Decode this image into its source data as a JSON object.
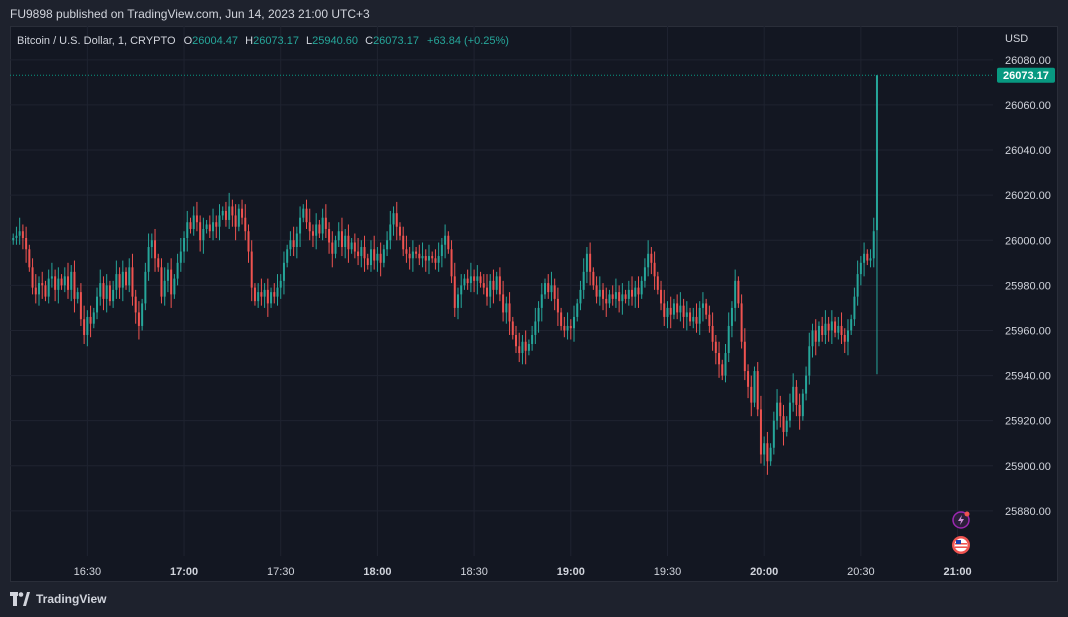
{
  "header": {
    "published": "FU9898 published on TradingView.com, Jun 14, 2023 21:00 UTC+3"
  },
  "footer": {
    "brand": "TradingView",
    "logo_icon": "tradingview-logo-icon"
  },
  "colors": {
    "up": "#26a69a",
    "down": "#ef5350",
    "background": "#131722",
    "grid": "#1f2330",
    "text": "#d1d4dc",
    "price_label": "#089981"
  },
  "chart_data": {
    "type": "candlestick",
    "symbol_text": "Bitcoin / U.S. Dollar, 1, CRYPTO",
    "ohlc": {
      "o_label": "O",
      "o_value": "26004.47",
      "h_label": "H",
      "h_value": "26073.17",
      "l_label": "L",
      "l_value": "25940.60",
      "c_label": "C",
      "c_value": "26073.17",
      "change": "+63.84 (+0.25%)"
    },
    "currency": "USD",
    "last_price": "26073.17",
    "last_price_value": 26073.17,
    "ylim": [
      25860,
      26095
    ],
    "y_ticks": [
      "26080.00",
      "26060.00",
      "26040.00",
      "26020.00",
      "26000.00",
      "25980.00",
      "25960.00",
      "25940.00",
      "25920.00",
      "25900.00",
      "25880.00"
    ],
    "y_tick_values": [
      26080,
      26060,
      26040,
      26020,
      26000,
      25980,
      25960,
      25940,
      25920,
      25900,
      25880
    ],
    "x_ticks": [
      "16:30",
      "17:00",
      "17:30",
      "18:00",
      "18:30",
      "19:00",
      "19:30",
      "20:00",
      "20:30",
      "21:00"
    ],
    "x_tick_bold": [
      false,
      true,
      false,
      true,
      false,
      true,
      false,
      true,
      false,
      true
    ],
    "x_tick_minutes_from_1630": [
      0,
      30,
      60,
      90,
      120,
      150,
      180,
      210,
      240,
      270
    ],
    "x_range_minutes_from_1630": [
      -24,
      281
    ],
    "grid": true,
    "event_icons": [
      "lightning-event-icon",
      "us-flag-event-icon"
    ],
    "close_series": [
      {
        "t": -23,
        "c": 26001
      },
      {
        "t": -22,
        "c": 26002
      },
      {
        "t": -21,
        "c": 26004
      },
      {
        "t": -20,
        "c": 26001
      },
      {
        "t": -19,
        "c": 25996
      },
      {
        "t": -18,
        "c": 25988
      },
      {
        "t": -17,
        "c": 25979
      },
      {
        "t": -16,
        "c": 25976
      },
      {
        "t": -15,
        "c": 25981
      },
      {
        "t": -14,
        "c": 25980
      },
      {
        "t": -13,
        "c": 25975
      },
      {
        "t": -12,
        "c": 25983
      },
      {
        "t": -11,
        "c": 25984
      },
      {
        "t": -10,
        "c": 25978
      },
      {
        "t": -9,
        "c": 25983
      },
      {
        "t": -8,
        "c": 25980
      },
      {
        "t": -7,
        "c": 25984
      },
      {
        "t": -6,
        "c": 25978
      },
      {
        "t": -5,
        "c": 25986
      },
      {
        "t": -4,
        "c": 25974
      },
      {
        "t": -3,
        "c": 25977
      },
      {
        "t": -2,
        "c": 25965
      },
      {
        "t": -1,
        "c": 25958
      },
      {
        "t": 0,
        "c": 25966
      },
      {
        "t": 1,
        "c": 25963
      },
      {
        "t": 2,
        "c": 25968
      },
      {
        "t": 3,
        "c": 25975
      },
      {
        "t": 4,
        "c": 25981
      },
      {
        "t": 5,
        "c": 25974
      },
      {
        "t": 6,
        "c": 25980
      },
      {
        "t": 7,
        "c": 25973
      },
      {
        "t": 8,
        "c": 25978
      },
      {
        "t": 9,
        "c": 25985
      },
      {
        "t": 10,
        "c": 25979
      },
      {
        "t": 11,
        "c": 25986
      },
      {
        "t": 12,
        "c": 25980
      },
      {
        "t": 13,
        "c": 25988
      },
      {
        "t": 14,
        "c": 25975
      },
      {
        "t": 15,
        "c": 25968
      },
      {
        "t": 16,
        "c": 25962
      },
      {
        "t": 17,
        "c": 25972
      },
      {
        "t": 18,
        "c": 25986
      },
      {
        "t": 19,
        "c": 25997
      },
      {
        "t": 20,
        "c": 26000
      },
      {
        "t": 21,
        "c": 25992
      },
      {
        "t": 22,
        "c": 25988
      },
      {
        "t": 23,
        "c": 25975
      },
      {
        "t": 24,
        "c": 25982
      },
      {
        "t": 25,
        "c": 25987
      },
      {
        "t": 26,
        "c": 25976
      },
      {
        "t": 27,
        "c": 25983
      },
      {
        "t": 28,
        "c": 25990
      },
      {
        "t": 29,
        "c": 25995
      },
      {
        "t": 30,
        "c": 26001
      },
      {
        "t": 31,
        "c": 26008
      },
      {
        "t": 32,
        "c": 26005
      },
      {
        "t": 33,
        "c": 26011
      },
      {
        "t": 34,
        "c": 26008
      },
      {
        "t": 35,
        "c": 26000
      },
      {
        "t": 36,
        "c": 26005
      },
      {
        "t": 37,
        "c": 26007
      },
      {
        "t": 38,
        "c": 26004
      },
      {
        "t": 39,
        "c": 26008
      },
      {
        "t": 40,
        "c": 26006
      },
      {
        "t": 41,
        "c": 26011
      },
      {
        "t": 42,
        "c": 26013
      },
      {
        "t": 43,
        "c": 26009
      },
      {
        "t": 44,
        "c": 26015
      },
      {
        "t": 45,
        "c": 26011
      },
      {
        "t": 46,
        "c": 26006
      },
      {
        "t": 47,
        "c": 26014
      },
      {
        "t": 48,
        "c": 26010
      },
      {
        "t": 49,
        "c": 26004
      },
      {
        "t": 50,
        "c": 25995
      },
      {
        "t": 51,
        "c": 25979
      },
      {
        "t": 52,
        "c": 25973
      },
      {
        "t": 53,
        "c": 25977
      },
      {
        "t": 54,
        "c": 25975
      },
      {
        "t": 55,
        "c": 25978
      },
      {
        "t": 56,
        "c": 25972
      },
      {
        "t": 57,
        "c": 25977
      },
      {
        "t": 58,
        "c": 25975
      },
      {
        "t": 59,
        "c": 25979
      },
      {
        "t": 60,
        "c": 25982
      },
      {
        "t": 61,
        "c": 25990
      },
      {
        "t": 62,
        "c": 25996
      },
      {
        "t": 63,
        "c": 26000
      },
      {
        "t": 64,
        "c": 25997
      },
      {
        "t": 65,
        "c": 26003
      },
      {
        "t": 66,
        "c": 26010
      },
      {
        "t": 67,
        "c": 26014
      },
      {
        "t": 68,
        "c": 26008
      },
      {
        "t": 69,
        "c": 26004
      },
      {
        "t": 70,
        "c": 26002
      },
      {
        "t": 71,
        "c": 26007
      },
      {
        "t": 72,
        "c": 26003
      },
      {
        "t": 73,
        "c": 26010
      },
      {
        "t": 74,
        "c": 26005
      },
      {
        "t": 75,
        "c": 25999
      },
      {
        "t": 76,
        "c": 25994
      },
      {
        "t": 77,
        "c": 26000
      },
      {
        "t": 78,
        "c": 26004
      },
      {
        "t": 79,
        "c": 25997
      },
      {
        "t": 80,
        "c": 26002
      },
      {
        "t": 81,
        "c": 25996
      },
      {
        "t": 82,
        "c": 25999
      },
      {
        "t": 83,
        "c": 25995
      },
      {
        "t": 84,
        "c": 25993
      },
      {
        "t": 85,
        "c": 25997
      },
      {
        "t": 86,
        "c": 25992
      },
      {
        "t": 87,
        "c": 25989
      },
      {
        "t": 88,
        "c": 25996
      },
      {
        "t": 89,
        "c": 25991
      },
      {
        "t": 90,
        "c": 25994
      },
      {
        "t": 91,
        "c": 25990
      },
      {
        "t": 92,
        "c": 25996
      },
      {
        "t": 93,
        "c": 26000
      },
      {
        "t": 94,
        "c": 26007
      },
      {
        "t": 95,
        "c": 26012
      },
      {
        "t": 96,
        "c": 26006
      },
      {
        "t": 97,
        "c": 26002
      },
      {
        "t": 98,
        "c": 25996
      },
      {
        "t": 99,
        "c": 25994
      },
      {
        "t": 100,
        "c": 25992
      },
      {
        "t": 101,
        "c": 25995
      },
      {
        "t": 102,
        "c": 25994
      },
      {
        "t": 103,
        "c": 25992
      },
      {
        "t": 104,
        "c": 25993
      },
      {
        "t": 105,
        "c": 25991
      },
      {
        "t": 106,
        "c": 25993
      },
      {
        "t": 107,
        "c": 25992
      },
      {
        "t": 108,
        "c": 25990
      },
      {
        "t": 109,
        "c": 25993
      },
      {
        "t": 110,
        "c": 25998
      },
      {
        "t": 111,
        "c": 26002
      },
      {
        "t": 112,
        "c": 25996
      },
      {
        "t": 113,
        "c": 25984
      },
      {
        "t": 114,
        "c": 25970
      },
      {
        "t": 115,
        "c": 25976
      },
      {
        "t": 116,
        "c": 25980
      },
      {
        "t": 117,
        "c": 25983
      },
      {
        "t": 118,
        "c": 25981
      },
      {
        "t": 119,
        "c": 25984
      },
      {
        "t": 120,
        "c": 25982
      },
      {
        "t": 121,
        "c": 25984
      },
      {
        "t": 122,
        "c": 25981
      },
      {
        "t": 123,
        "c": 25979
      },
      {
        "t": 124,
        "c": 25975
      },
      {
        "t": 125,
        "c": 25982
      },
      {
        "t": 126,
        "c": 25978
      },
      {
        "t": 127,
        "c": 25984
      },
      {
        "t": 128,
        "c": 25976
      },
      {
        "t": 129,
        "c": 25968
      },
      {
        "t": 130,
        "c": 25972
      },
      {
        "t": 131,
        "c": 25964
      },
      {
        "t": 132,
        "c": 25958
      },
      {
        "t": 133,
        "c": 25953
      },
      {
        "t": 134,
        "c": 25950
      },
      {
        "t": 135,
        "c": 25955
      },
      {
        "t": 136,
        "c": 25951
      },
      {
        "t": 137,
        "c": 25954
      },
      {
        "t": 138,
        "c": 25958
      },
      {
        "t": 139,
        "c": 25964
      },
      {
        "t": 140,
        "c": 25970
      },
      {
        "t": 141,
        "c": 25976
      },
      {
        "t": 142,
        "c": 25981
      },
      {
        "t": 143,
        "c": 25977
      },
      {
        "t": 144,
        "c": 25980
      },
      {
        "t": 145,
        "c": 25974
      },
      {
        "t": 146,
        "c": 25968
      },
      {
        "t": 147,
        "c": 25962
      },
      {
        "t": 148,
        "c": 25960
      },
      {
        "t": 149,
        "c": 25962
      },
      {
        "t": 150,
        "c": 25961
      },
      {
        "t": 151,
        "c": 25966
      },
      {
        "t": 152,
        "c": 25972
      },
      {
        "t": 153,
        "c": 25978
      },
      {
        "t": 154,
        "c": 25986
      },
      {
        "t": 155,
        "c": 25994
      },
      {
        "t": 156,
        "c": 25986
      },
      {
        "t": 157,
        "c": 25980
      },
      {
        "t": 158,
        "c": 25975
      },
      {
        "t": 159,
        "c": 25978
      },
      {
        "t": 160,
        "c": 25974
      },
      {
        "t": 161,
        "c": 25972
      },
      {
        "t": 162,
        "c": 25976
      },
      {
        "t": 163,
        "c": 25974
      },
      {
        "t": 164,
        "c": 25977
      },
      {
        "t": 165,
        "c": 25973
      },
      {
        "t": 166,
        "c": 25976
      },
      {
        "t": 167,
        "c": 25974
      },
      {
        "t": 168,
        "c": 25978
      },
      {
        "t": 169,
        "c": 25975
      },
      {
        "t": 170,
        "c": 25979
      },
      {
        "t": 171,
        "c": 25976
      },
      {
        "t": 172,
        "c": 25982
      },
      {
        "t": 173,
        "c": 25988
      },
      {
        "t": 174,
        "c": 25994
      },
      {
        "t": 175,
        "c": 25990
      },
      {
        "t": 176,
        "c": 25984
      },
      {
        "t": 177,
        "c": 25978
      },
      {
        "t": 178,
        "c": 25972
      },
      {
        "t": 179,
        "c": 25966
      },
      {
        "t": 180,
        "c": 25970
      },
      {
        "t": 181,
        "c": 25967
      },
      {
        "t": 182,
        "c": 25972
      },
      {
        "t": 183,
        "c": 25968
      },
      {
        "t": 184,
        "c": 25971
      },
      {
        "t": 185,
        "c": 25966
      },
      {
        "t": 186,
        "c": 25968
      },
      {
        "t": 187,
        "c": 25964
      },
      {
        "t": 188,
        "c": 25966
      },
      {
        "t": 189,
        "c": 25963
      },
      {
        "t": 190,
        "c": 25970
      },
      {
        "t": 191,
        "c": 25972
      },
      {
        "t": 192,
        "c": 25967
      },
      {
        "t": 193,
        "c": 25962
      },
      {
        "t": 194,
        "c": 25955
      },
      {
        "t": 195,
        "c": 25950
      },
      {
        "t": 196,
        "c": 25945
      },
      {
        "t": 197,
        "c": 25940
      },
      {
        "t": 198,
        "c": 25950
      },
      {
        "t": 199,
        "c": 25962
      },
      {
        "t": 200,
        "c": 25970
      },
      {
        "t": 201,
        "c": 25982
      },
      {
        "t": 202,
        "c": 25972
      },
      {
        "t": 203,
        "c": 25955
      },
      {
        "t": 204,
        "c": 25942
      },
      {
        "t": 205,
        "c": 25935
      },
      {
        "t": 206,
        "c": 25928
      },
      {
        "t": 207,
        "c": 25942
      },
      {
        "t": 208,
        "c": 25925
      },
      {
        "t": 209,
        "c": 25905
      },
      {
        "t": 210,
        "c": 25910
      },
      {
        "t": 211,
        "c": 25902
      },
      {
        "t": 212,
        "c": 25908
      },
      {
        "t": 213,
        "c": 25920
      },
      {
        "t": 214,
        "c": 25928
      },
      {
        "t": 215,
        "c": 25922
      },
      {
        "t": 216,
        "c": 25915
      },
      {
        "t": 217,
        "c": 25920
      },
      {
        "t": 218,
        "c": 25928
      },
      {
        "t": 219,
        "c": 25935
      },
      {
        "t": 220,
        "c": 25927
      },
      {
        "t": 221,
        "c": 25922
      },
      {
        "t": 222,
        "c": 25932
      },
      {
        "t": 223,
        "c": 25940
      },
      {
        "t": 224,
        "c": 25953
      },
      {
        "t": 225,
        "c": 25960
      },
      {
        "t": 226,
        "c": 25955
      },
      {
        "t": 227,
        "c": 25962
      },
      {
        "t": 228,
        "c": 25958
      },
      {
        "t": 229,
        "c": 25963
      },
      {
        "t": 230,
        "c": 25960
      },
      {
        "t": 231,
        "c": 25964
      },
      {
        "t": 232,
        "c": 25959
      },
      {
        "t": 233,
        "c": 25962
      },
      {
        "t": 234,
        "c": 25958
      },
      {
        "t": 235,
        "c": 25955
      },
      {
        "t": 236,
        "c": 25960
      },
      {
        "t": 237,
        "c": 25965
      },
      {
        "t": 238,
        "c": 25975
      },
      {
        "t": 239,
        "c": 25985
      },
      {
        "t": 240,
        "c": 25990
      },
      {
        "t": 241,
        "c": 25994
      },
      {
        "t": 242,
        "c": 25991
      },
      {
        "t": 243,
        "c": 25992
      },
      {
        "t": 244,
        "c": 26004
      },
      {
        "t": 245,
        "c": 26073.17
      }
    ]
  }
}
